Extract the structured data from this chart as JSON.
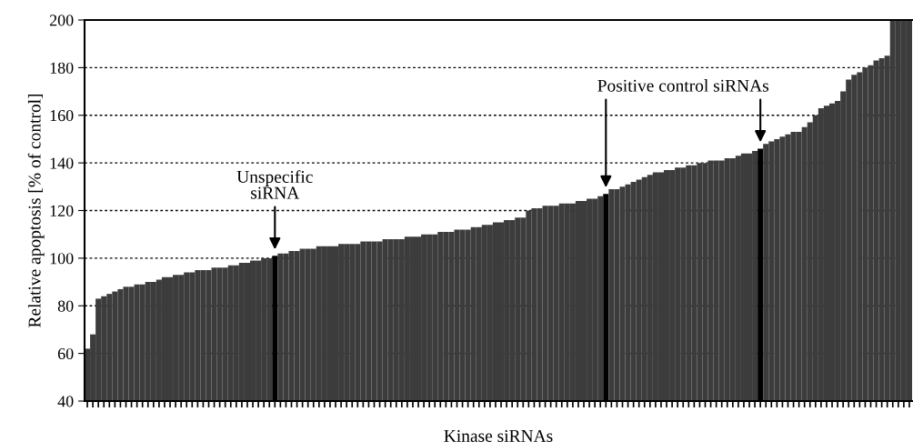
{
  "chart_data": {
    "type": "bar",
    "xlabel": "Kinase siRNAs",
    "ylabel": "Relative apoptosis [% of control]",
    "categories": [
      null,
      null,
      null,
      null,
      null,
      null,
      null,
      null,
      null,
      null,
      null,
      null,
      null,
      null,
      null,
      null,
      null,
      null,
      null,
      null,
      null,
      null,
      null,
      null,
      null,
      null,
      null,
      null,
      null,
      null,
      null,
      null,
      null,
      null,
      null,
      null,
      null,
      null,
      null,
      null,
      null,
      null,
      null,
      null,
      null,
      null,
      null,
      null,
      null,
      null,
      null,
      null,
      null,
      null,
      null,
      null,
      null,
      null,
      null,
      null,
      null,
      null,
      null,
      null,
      null,
      null,
      null,
      null,
      null,
      null,
      null,
      null,
      null,
      null,
      null,
      null,
      null,
      null,
      null,
      null,
      null,
      null,
      null,
      null,
      null,
      null,
      null,
      null,
      null,
      null,
      null,
      null,
      null,
      null,
      null,
      null,
      null,
      null,
      null,
      null,
      null,
      null,
      null,
      null,
      null,
      null,
      null,
      null,
      null,
      null,
      null,
      null,
      null,
      null,
      null,
      null,
      null,
      null,
      null,
      null,
      null,
      null,
      null,
      null,
      null,
      null,
      null,
      null,
      null,
      null,
      null,
      null,
      null,
      null,
      null,
      null,
      null,
      null,
      null,
      null,
      null,
      null,
      null,
      null,
      null,
      null,
      null,
      null,
      null,
      null
    ],
    "values": [
      62,
      68,
      83,
      84,
      85,
      86,
      87,
      88,
      88,
      89,
      89,
      90,
      90,
      91,
      92,
      92,
      93,
      93,
      94,
      94,
      95,
      95,
      95,
      96,
      96,
      96,
      97,
      97,
      98,
      98,
      99,
      99,
      100,
      100,
      101,
      102,
      102,
      103,
      103,
      104,
      104,
      104,
      105,
      105,
      105,
      105,
      106,
      106,
      106,
      106,
      107,
      107,
      107,
      107,
      108,
      108,
      108,
      108,
      109,
      109,
      109,
      110,
      110,
      110,
      111,
      111,
      111,
      112,
      112,
      112,
      113,
      113,
      114,
      114,
      115,
      115,
      116,
      116,
      117,
      117,
      120,
      121,
      121,
      122,
      122,
      122,
      123,
      123,
      123,
      124,
      124,
      125,
      125,
      126,
      127,
      129,
      129,
      130,
      131,
      132,
      133,
      134,
      135,
      136,
      136,
      137,
      137,
      138,
      138,
      139,
      139,
      140,
      140,
      141,
      141,
      141,
      142,
      142,
      143,
      144,
      144,
      145,
      146,
      148,
      149,
      150,
      151,
      152,
      153,
      153,
      155,
      157,
      160,
      163,
      164,
      165,
      166,
      170,
      175,
      177,
      178,
      180,
      181,
      183,
      184,
      185,
      200,
      200,
      200,
      200
    ],
    "colors": [
      "#3c3c3c",
      "#3c3c3c",
      "#3c3c3c",
      "#3c3c3c",
      "#3c3c3c",
      "#3c3c3c",
      "#3c3c3c",
      "#3c3c3c",
      "#3c3c3c",
      "#3c3c3c",
      "#3c3c3c",
      "#3c3c3c",
      "#3c3c3c",
      "#3c3c3c",
      "#3c3c3c",
      "#3c3c3c",
      "#3c3c3c",
      "#3c3c3c",
      "#3c3c3c",
      "#3c3c3c",
      "#3c3c3c",
      "#3c3c3c",
      "#3c3c3c",
      "#3c3c3c",
      "#3c3c3c",
      "#3c3c3c",
      "#3c3c3c",
      "#3c3c3c",
      "#3c3c3c",
      "#3c3c3c",
      "#3c3c3c",
      "#3c3c3c",
      "#3c3c3c",
      "#3c3c3c",
      "#000000",
      "#3c3c3c",
      "#3c3c3c",
      "#3c3c3c",
      "#3c3c3c",
      "#3c3c3c",
      "#3c3c3c",
      "#3c3c3c",
      "#3c3c3c",
      "#3c3c3c",
      "#3c3c3c",
      "#3c3c3c",
      "#3c3c3c",
      "#3c3c3c",
      "#3c3c3c",
      "#3c3c3c",
      "#3c3c3c",
      "#3c3c3c",
      "#3c3c3c",
      "#3c3c3c",
      "#3c3c3c",
      "#3c3c3c",
      "#3c3c3c",
      "#3c3c3c",
      "#3c3c3c",
      "#3c3c3c",
      "#3c3c3c",
      "#3c3c3c",
      "#3c3c3c",
      "#3c3c3c",
      "#3c3c3c",
      "#3c3c3c",
      "#3c3c3c",
      "#3c3c3c",
      "#3c3c3c",
      "#3c3c3c",
      "#3c3c3c",
      "#3c3c3c",
      "#3c3c3c",
      "#3c3c3c",
      "#3c3c3c",
      "#3c3c3c",
      "#3c3c3c",
      "#3c3c3c",
      "#3c3c3c",
      "#3c3c3c",
      "#3c3c3c",
      "#3c3c3c",
      "#3c3c3c",
      "#3c3c3c",
      "#3c3c3c",
      "#3c3c3c",
      "#3c3c3c",
      "#3c3c3c",
      "#3c3c3c",
      "#3c3c3c",
      "#3c3c3c",
      "#3c3c3c",
      "#3c3c3c",
      "#3c3c3c",
      "#000000",
      "#3c3c3c",
      "#3c3c3c",
      "#3c3c3c",
      "#3c3c3c",
      "#3c3c3c",
      "#3c3c3c",
      "#3c3c3c",
      "#3c3c3c",
      "#3c3c3c",
      "#3c3c3c",
      "#3c3c3c",
      "#3c3c3c",
      "#3c3c3c",
      "#3c3c3c",
      "#3c3c3c",
      "#3c3c3c",
      "#3c3c3c",
      "#3c3c3c",
      "#3c3c3c",
      "#3c3c3c",
      "#3c3c3c",
      "#3c3c3c",
      "#3c3c3c",
      "#3c3c3c",
      "#3c3c3c",
      "#3c3c3c",
      "#3c3c3c",
      "#000000",
      "#3c3c3c",
      "#3c3c3c",
      "#3c3c3c",
      "#3c3c3c",
      "#3c3c3c",
      "#3c3c3c",
      "#3c3c3c",
      "#3c3c3c",
      "#3c3c3c",
      "#3c3c3c",
      "#3c3c3c",
      "#3c3c3c",
      "#3c3c3c",
      "#3c3c3c",
      "#3c3c3c",
      "#3c3c3c",
      "#3c3c3c",
      "#3c3c3c",
      "#3c3c3c",
      "#3c3c3c",
      "#3c3c3c",
      "#3c3c3c",
      "#3c3c3c",
      "#3c3c3c",
      "#3c3c3c",
      "#3c3c3c",
      "#3c3c3c"
    ],
    "ylim": [
      40,
      200
    ],
    "yticks": [
      40,
      60,
      80,
      100,
      120,
      140,
      160,
      180,
      200
    ],
    "grid": "y",
    "tick_labels": "y",
    "annotations": [
      "Unspecific\nsiRNA",
      "Positive control siRNAs"
    ]
  }
}
